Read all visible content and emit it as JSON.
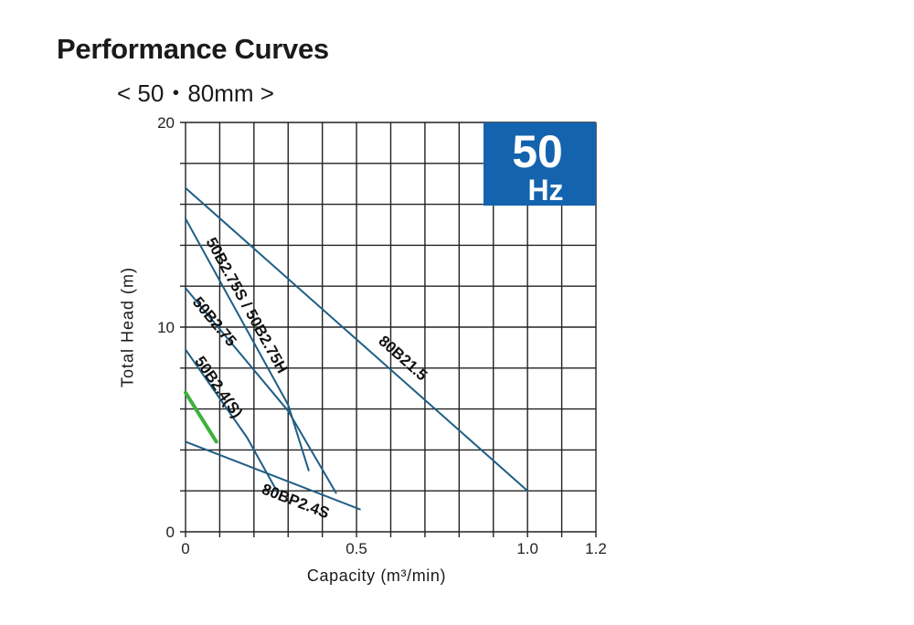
{
  "title": "Performance Curves",
  "subtitle": "< 50・80mm >",
  "chart_data": {
    "type": "line",
    "xlabel": "Capacity (m³/min)",
    "ylabel": "Total Head (m)",
    "xlim": [
      0,
      1.2
    ],
    "ylim": [
      0,
      20
    ],
    "x_ticks": [
      {
        "value": 0,
        "label": "0"
      },
      {
        "value": 0.5,
        "label": "0.5"
      },
      {
        "value": 1.0,
        "label": "1.0"
      },
      {
        "value": 1.2,
        "label": "1.2"
      }
    ],
    "y_ticks": [
      {
        "value": 0,
        "label": "0"
      },
      {
        "value": 10,
        "label": "10"
      },
      {
        "value": 20,
        "label": "20"
      }
    ],
    "grid": true,
    "x_grid_step": 0.1,
    "y_grid_step": 2,
    "badge": {
      "big": "50",
      "small": "Hz",
      "color": "#1463ae"
    },
    "series": [
      {
        "name": "80B21.5",
        "color": "#1f5e86",
        "points": [
          [
            0,
            16.8
          ],
          [
            1.0,
            2.0
          ]
        ]
      },
      {
        "name": "50B2.75S / 50B2.75H",
        "color": "#1f5e86",
        "points": [
          [
            0,
            15.3
          ],
          [
            0.3,
            6.2
          ],
          [
            0.36,
            3.0
          ]
        ]
      },
      {
        "name": "50B2.75",
        "color": "#1f5e86",
        "points": [
          [
            0,
            11.9
          ],
          [
            0.3,
            5.9
          ],
          [
            0.44,
            1.9
          ]
        ]
      },
      {
        "name": "50B2.4(S)",
        "color": "#1f5e86",
        "points": [
          [
            0,
            8.9
          ],
          [
            0.18,
            4.6
          ],
          [
            0.27,
            1.9
          ]
        ]
      },
      {
        "name": "80BP2.4S",
        "color": "#1f5e86",
        "points": [
          [
            0,
            4.4
          ],
          [
            0.51,
            1.1
          ]
        ]
      },
      {
        "name": "",
        "color": "#3cb13c",
        "points": [
          [
            0,
            6.8
          ],
          [
            0.09,
            4.4
          ]
        ]
      }
    ]
  }
}
